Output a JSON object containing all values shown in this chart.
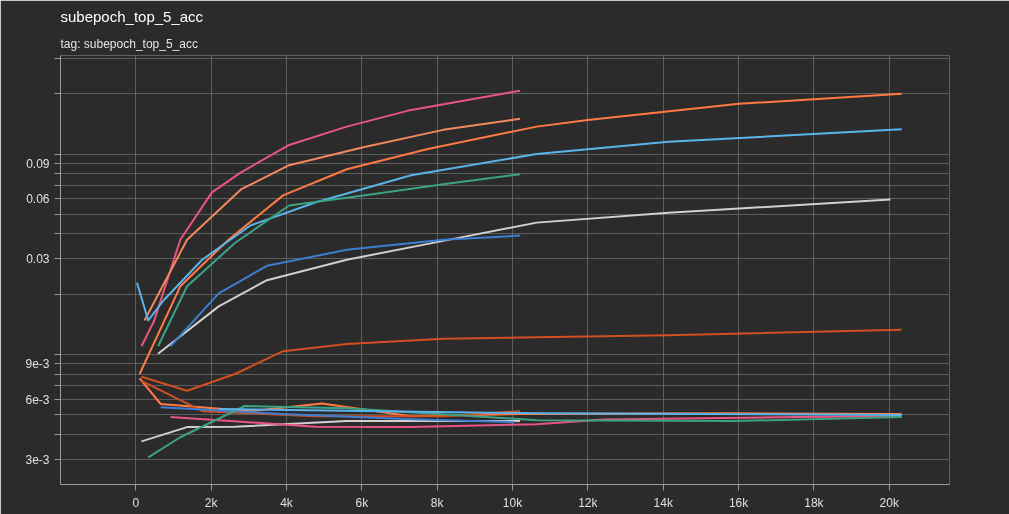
{
  "chart_data": {
    "type": "line",
    "title": "subepoch_top_5_acc",
    "subtitle": "tag: subepoch_top_5_acc",
    "log": "y",
    "grid": true,
    "line_style": "solid",
    "marker": "none",
    "xlim": [
      -2000,
      21600
    ],
    "ylim": [
      0.00225,
      0.31
    ],
    "xticks": [
      0,
      {
        "value": 2000,
        "label": "2k"
      },
      {
        "value": 4000,
        "label": "4k"
      },
      {
        "value": 6000,
        "label": "6k"
      },
      {
        "value": 8000,
        "label": "8k"
      },
      {
        "value": 10000,
        "label": "10k"
      },
      {
        "value": 12000,
        "label": "12k"
      },
      {
        "value": 14000,
        "label": "14k"
      },
      {
        "value": 16000,
        "label": "16k"
      },
      {
        "value": 18000,
        "label": "18k"
      },
      {
        "value": 20000,
        "label": "20k"
      }
    ],
    "yticks": [
      {
        "value": 0.003,
        "label": "3e-3"
      },
      {
        "value": 0.004,
        "label": null
      },
      {
        "value": 0.005,
        "label": null
      },
      {
        "value": 0.006,
        "label": "6e-3"
      },
      {
        "value": 0.007,
        "label": null
      },
      {
        "value": 0.008,
        "label": null
      },
      {
        "value": 0.009,
        "label": "9e-3"
      },
      {
        "value": 0.01,
        "label": null
      },
      {
        "value": 0.02,
        "label": null
      },
      0.03,
      {
        "value": 0.04,
        "label": null
      },
      {
        "value": 0.05,
        "label": null
      },
      0.06,
      {
        "value": 0.07,
        "label": null
      },
      {
        "value": 0.08,
        "label": null
      },
      0.09,
      {
        "value": 0.1,
        "label": null
      },
      {
        "value": 0.2,
        "label": null
      },
      {
        "value": 0.3,
        "label": null
      }
    ],
    "series": [
      {
        "color": "#e8557f",
        "x": [
          150,
          490,
          1180,
          2020,
          2790,
          4070,
          5600,
          7310,
          9030,
          10200
        ],
        "values": [
          0.011,
          0.0148,
          0.0374,
          0.0644,
          0.081,
          0.111,
          0.137,
          0.166,
          0.189,
          0.207
        ]
      },
      {
        "color": "#f08a5d",
        "x": [
          230,
          1360,
          2790,
          4070,
          6040,
          8160,
          10200
        ],
        "values": [
          0.0148,
          0.0374,
          0.0666,
          0.088,
          0.108,
          0.132,
          0.15
        ]
      },
      {
        "color": "#ff7a45",
        "x": [
          100,
          1180,
          2460,
          3910,
          5600,
          7750,
          10640,
          12000,
          16010,
          20330
        ],
        "values": [
          0.008,
          0.0219,
          0.0374,
          0.0622,
          0.084,
          0.106,
          0.137,
          0.148,
          0.178,
          0.2
        ]
      },
      {
        "color": "#5ab4ea",
        "x": [
          30,
          330,
          740,
          1760,
          3040,
          4760,
          7310,
          10640,
          14140,
          20330
        ],
        "values": [
          0.0228,
          0.0148,
          0.01866,
          0.0297,
          0.044,
          0.0573,
          0.0784,
          0.1,
          0.115,
          0.133
        ]
      },
      {
        "color": "#3ba384",
        "x": [
          590,
          1360,
          2630,
          4070,
          6040,
          8160,
          10200
        ],
        "values": [
          0.011,
          0.0219,
          0.036,
          0.0554,
          0.0622,
          0.0706,
          0.0793
        ]
      },
      {
        "color": "#d0d0d0",
        "x": [
          590,
          2200,
          3480,
          5600,
          8160,
          10640,
          14140,
          20030
        ],
        "values": [
          0.0101,
          0.0174,
          0.0235,
          0.0297,
          0.0369,
          0.0455,
          0.051,
          0.0593
        ]
      },
      {
        "color": "#3d7ed0",
        "x": [
          920,
          2200,
          3480,
          5600,
          8160,
          10200
        ],
        "values": [
          0.011,
          0.0202,
          0.0277,
          0.0333,
          0.0374,
          0.0392
        ]
      },
      {
        "color": "#d14f22",
        "x": [
          150,
          1360,
          2630,
          3910,
          5600,
          8160,
          10640,
          14140,
          20330
        ],
        "values": [
          0.00775,
          0.0066,
          0.008,
          0.0104,
          0.0113,
          0.012,
          0.0122,
          0.0125,
          0.0133
        ]
      },
      {
        "color": "#ff7a45",
        "x": [
          100,
          660,
          3040,
          4940,
          7310,
          10200,
          15830,
          20330
        ],
        "values": [
          0.0076,
          0.00567,
          0.00522,
          0.0057,
          0.00493,
          0.00505,
          0.0051,
          0.00505
        ]
      },
      {
        "color": "#d14f22",
        "x": [
          150,
          1770,
          4760,
          8160,
          10200
        ],
        "values": [
          0.0074,
          0.00522,
          0.00493,
          0.00493,
          0.00522
        ]
      },
      {
        "color": "#d0d0d0",
        "x": [
          150,
          1360,
          2630,
          5600,
          10200
        ],
        "values": [
          0.00369,
          0.00435,
          0.00437,
          0.00466,
          0.00466
        ]
      },
      {
        "color": "#3d7ed0",
        "x": [
          660,
          3910,
          7310,
          10050
        ],
        "values": [
          0.00547,
          0.00505,
          0.00476,
          0.0046
        ]
      },
      {
        "color": "#e8557f",
        "x": [
          920,
          4760,
          7310,
          10640,
          12430,
          17540,
          20330
        ],
        "values": [
          0.00488,
          0.00437,
          0.00435,
          0.0045,
          0.00475,
          0.00488,
          0.00493
        ]
      },
      {
        "color": "#3ba384",
        "x": [
          330,
          1180,
          2890,
          5600,
          10640,
          15830,
          20330
        ],
        "values": [
          0.00307,
          0.00387,
          0.00554,
          0.0054,
          0.00471,
          0.00466,
          0.00488
        ]
      },
      {
        "color": "#5ab4ea",
        "x": [
          2200,
          6470,
          10640,
          20330
        ],
        "values": [
          0.00535,
          0.00522,
          0.0051,
          0.005
        ]
      }
    ]
  }
}
